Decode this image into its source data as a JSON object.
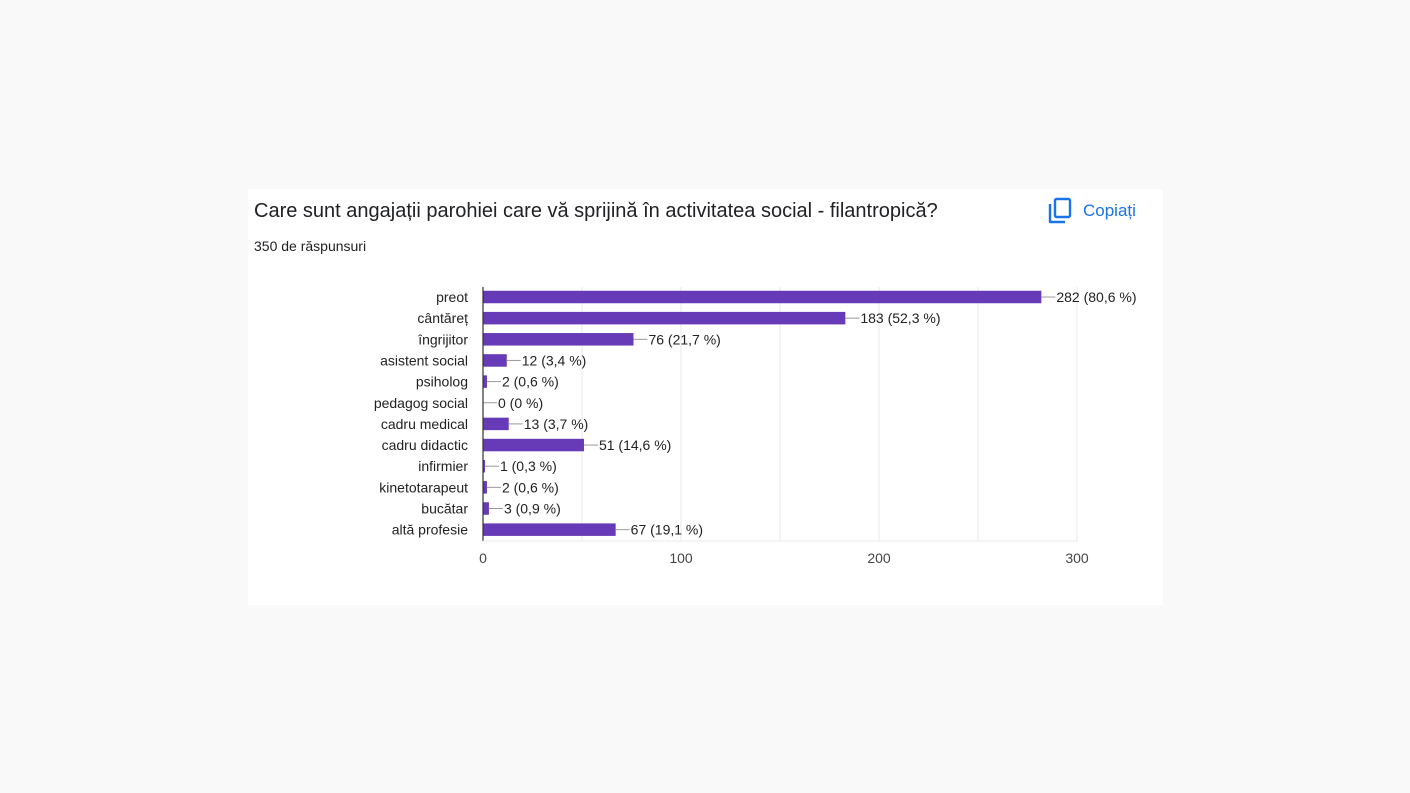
{
  "card": {
    "title": "Care sunt angajații parohiei care vă sprijină în activitatea social - filantropică?",
    "subtitle": "350 de răspunsuri",
    "copy_label": "Copiați",
    "copy_icon": "copy-icon"
  },
  "colors": {
    "bar": "#673ab7",
    "accent": "#1a73e8",
    "grid": "#e8e8e8",
    "axis": "#333333",
    "leader": "#999999"
  },
  "chart_data": {
    "type": "bar",
    "orientation": "horizontal",
    "title": "",
    "xlabel": "",
    "ylabel": "",
    "xlim": [
      0,
      300
    ],
    "x_ticks": [
      0,
      100,
      200,
      300
    ],
    "x_tick_labels": [
      "0",
      "100",
      "200",
      "300"
    ],
    "grid": true,
    "categories": [
      "preot",
      "cântăreț",
      "îngrijitor",
      "asistent social",
      "psiholog",
      "pedagog social",
      "cadru medical",
      "cadru didactic",
      "infirmier",
      "kinetotarapeut",
      "bucătar",
      "altă profesie"
    ],
    "values": [
      282,
      183,
      76,
      12,
      2,
      0,
      13,
      51,
      1,
      2,
      3,
      67
    ],
    "data_labels": [
      "282 (80,6 %)",
      "183 (52,3 %)",
      "76 (21,7 %)",
      "12 (3,4 %)",
      "2 (0,6 %)",
      "0 (0 %)",
      "13 (3,7 %)",
      "51 (14,6 %)",
      "1 (0,3 %)",
      "2 (0,6 %)",
      "3 (0,9 %)",
      "67 (19,1 %)"
    ]
  }
}
